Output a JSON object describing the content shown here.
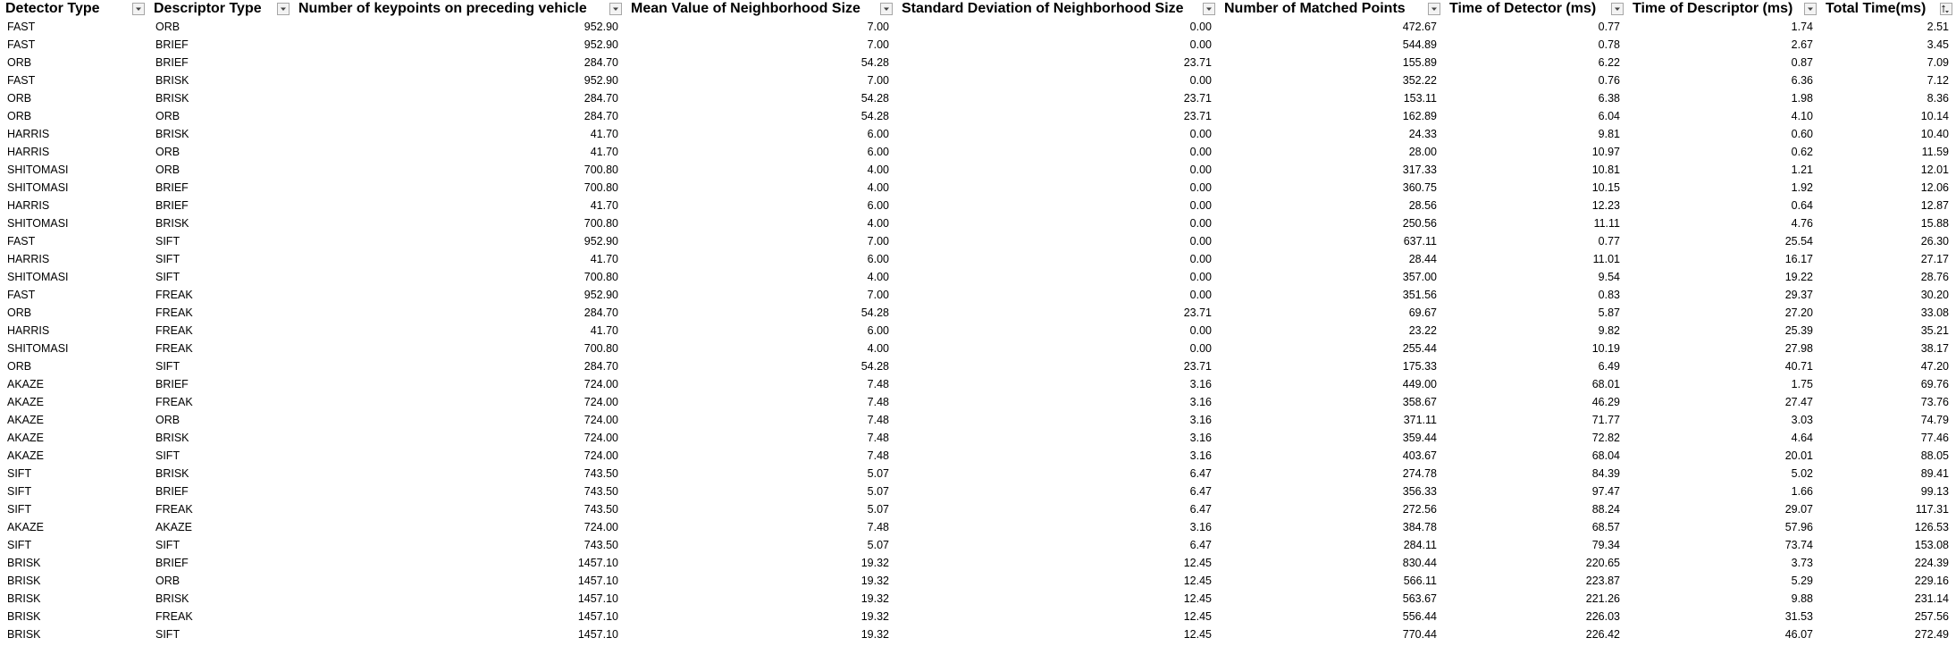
{
  "sheet": {
    "columns": [
      {
        "label": "Detector Type",
        "filter_icon": "filter-dropdown-icon"
      },
      {
        "label": "Descriptor Type",
        "filter_icon": "filter-dropdown-icon"
      },
      {
        "label": "Number of keypoints on preceding vehicle",
        "filter_icon": "filter-dropdown-icon"
      },
      {
        "label": "Mean Value of Neighborhood Size",
        "filter_icon": "filter-dropdown-icon"
      },
      {
        "label": "Standard Deviation of Neighborhood Size",
        "filter_icon": "filter-dropdown-icon"
      },
      {
        "label": "Number of Matched Points",
        "filter_icon": "filter-dropdown-icon"
      },
      {
        "label": "Time of Detector (ms)",
        "filter_icon": "filter-dropdown-icon"
      },
      {
        "label": "Time of Descriptor (ms)",
        "filter_icon": "filter-dropdown-icon"
      },
      {
        "label": "Total Time(ms)",
        "filter_icon": "sort-ascending-filter-icon"
      }
    ],
    "rows": [
      [
        "FAST",
        "ORB",
        "952.90",
        "7.00",
        "0.00",
        "472.67",
        "0.77",
        "1.74",
        "2.51"
      ],
      [
        "FAST",
        "BRIEF",
        "952.90",
        "7.00",
        "0.00",
        "544.89",
        "0.78",
        "2.67",
        "3.45"
      ],
      [
        "ORB",
        "BRIEF",
        "284.70",
        "54.28",
        "23.71",
        "155.89",
        "6.22",
        "0.87",
        "7.09"
      ],
      [
        "FAST",
        "BRISK",
        "952.90",
        "7.00",
        "0.00",
        "352.22",
        "0.76",
        "6.36",
        "7.12"
      ],
      [
        "ORB",
        "BRISK",
        "284.70",
        "54.28",
        "23.71",
        "153.11",
        "6.38",
        "1.98",
        "8.36"
      ],
      [
        "ORB",
        "ORB",
        "284.70",
        "54.28",
        "23.71",
        "162.89",
        "6.04",
        "4.10",
        "10.14"
      ],
      [
        "HARRIS",
        "BRISK",
        "41.70",
        "6.00",
        "0.00",
        "24.33",
        "9.81",
        "0.60",
        "10.40"
      ],
      [
        "HARRIS",
        "ORB",
        "41.70",
        "6.00",
        "0.00",
        "28.00",
        "10.97",
        "0.62",
        "11.59"
      ],
      [
        "SHITOMASI",
        "ORB",
        "700.80",
        "4.00",
        "0.00",
        "317.33",
        "10.81",
        "1.21",
        "12.01"
      ],
      [
        "SHITOMASI",
        "BRIEF",
        "700.80",
        "4.00",
        "0.00",
        "360.75",
        "10.15",
        "1.92",
        "12.06"
      ],
      [
        "HARRIS",
        "BRIEF",
        "41.70",
        "6.00",
        "0.00",
        "28.56",
        "12.23",
        "0.64",
        "12.87"
      ],
      [
        "SHITOMASI",
        "BRISK",
        "700.80",
        "4.00",
        "0.00",
        "250.56",
        "11.11",
        "4.76",
        "15.88"
      ],
      [
        "FAST",
        "SIFT",
        "952.90",
        "7.00",
        "0.00",
        "637.11",
        "0.77",
        "25.54",
        "26.30"
      ],
      [
        "HARRIS",
        "SIFT",
        "41.70",
        "6.00",
        "0.00",
        "28.44",
        "11.01",
        "16.17",
        "27.17"
      ],
      [
        "SHITOMASI",
        "SIFT",
        "700.80",
        "4.00",
        "0.00",
        "357.00",
        "9.54",
        "19.22",
        "28.76"
      ],
      [
        "FAST",
        "FREAK",
        "952.90",
        "7.00",
        "0.00",
        "351.56",
        "0.83",
        "29.37",
        "30.20"
      ],
      [
        "ORB",
        "FREAK",
        "284.70",
        "54.28",
        "23.71",
        "69.67",
        "5.87",
        "27.20",
        "33.08"
      ],
      [
        "HARRIS",
        "FREAK",
        "41.70",
        "6.00",
        "0.00",
        "23.22",
        "9.82",
        "25.39",
        "35.21"
      ],
      [
        "SHITOMASI",
        "FREAK",
        "700.80",
        "4.00",
        "0.00",
        "255.44",
        "10.19",
        "27.98",
        "38.17"
      ],
      [
        "ORB",
        "SIFT",
        "284.70",
        "54.28",
        "23.71",
        "175.33",
        "6.49",
        "40.71",
        "47.20"
      ],
      [
        "AKAZE",
        "BRIEF",
        "724.00",
        "7.48",
        "3.16",
        "449.00",
        "68.01",
        "1.75",
        "69.76"
      ],
      [
        "AKAZE",
        "FREAK",
        "724.00",
        "7.48",
        "3.16",
        "358.67",
        "46.29",
        "27.47",
        "73.76"
      ],
      [
        "AKAZE",
        "ORB",
        "724.00",
        "7.48",
        "3.16",
        "371.11",
        "71.77",
        "3.03",
        "74.79"
      ],
      [
        "AKAZE",
        "BRISK",
        "724.00",
        "7.48",
        "3.16",
        "359.44",
        "72.82",
        "4.64",
        "77.46"
      ],
      [
        "AKAZE",
        "SIFT",
        "724.00",
        "7.48",
        "3.16",
        "403.67",
        "68.04",
        "20.01",
        "88.05"
      ],
      [
        "SIFT",
        "BRISK",
        "743.50",
        "5.07",
        "6.47",
        "274.78",
        "84.39",
        "5.02",
        "89.41"
      ],
      [
        "SIFT",
        "BRIEF",
        "743.50",
        "5.07",
        "6.47",
        "356.33",
        "97.47",
        "1.66",
        "99.13"
      ],
      [
        "SIFT",
        "FREAK",
        "743.50",
        "5.07",
        "6.47",
        "272.56",
        "88.24",
        "29.07",
        "117.31"
      ],
      [
        "AKAZE",
        "AKAZE",
        "724.00",
        "7.48",
        "3.16",
        "384.78",
        "68.57",
        "57.96",
        "126.53"
      ],
      [
        "SIFT",
        "SIFT",
        "743.50",
        "5.07",
        "6.47",
        "284.11",
        "79.34",
        "73.74",
        "153.08"
      ],
      [
        "BRISK",
        "BRIEF",
        "1457.10",
        "19.32",
        "12.45",
        "830.44",
        "220.65",
        "3.73",
        "224.39"
      ],
      [
        "BRISK",
        "ORB",
        "1457.10",
        "19.32",
        "12.45",
        "566.11",
        "223.87",
        "5.29",
        "229.16"
      ],
      [
        "BRISK",
        "BRISK",
        "1457.10",
        "19.32",
        "12.45",
        "563.67",
        "221.26",
        "9.88",
        "231.14"
      ],
      [
        "BRISK",
        "FREAK",
        "1457.10",
        "19.32",
        "12.45",
        "556.44",
        "226.03",
        "31.53",
        "257.56"
      ],
      [
        "BRISK",
        "SIFT",
        "1457.10",
        "19.32",
        "12.45",
        "770.44",
        "226.42",
        "46.07",
        "272.49"
      ]
    ]
  }
}
